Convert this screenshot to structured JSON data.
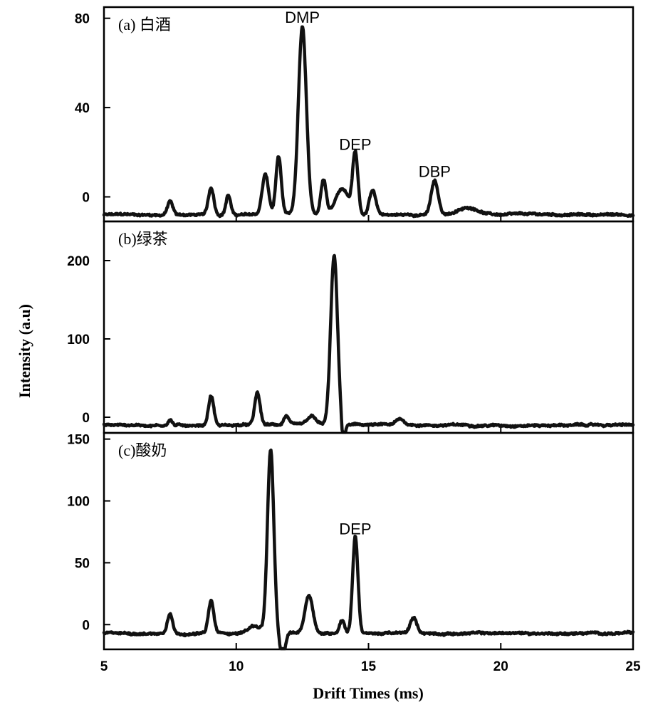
{
  "chart_data": {
    "type": "line",
    "xlabel": "Drift Times (ms)",
    "ylabel": "Intensity (a.u)",
    "xlim": [
      5,
      25
    ],
    "xticks": [
      5,
      10,
      15,
      20,
      25
    ],
    "grid": false,
    "panels": [
      {
        "label": "(a) 白酒",
        "ylim": [
          -11,
          85
        ],
        "yticks": [
          0,
          40,
          80
        ],
        "baseline": -8,
        "peaks": [
          {
            "x": 7.5,
            "h": 6,
            "w": 0.1
          },
          {
            "x": 9.05,
            "h": 12,
            "w": 0.1
          },
          {
            "x": 9.7,
            "h": 9,
            "w": 0.09
          },
          {
            "x": 11.1,
            "h": 18,
            "w": 0.12
          },
          {
            "x": 11.6,
            "h": 26,
            "w": 0.1
          },
          {
            "x": 12.5,
            "h": 84,
            "w": 0.15
          },
          {
            "x": 13.3,
            "h": 16,
            "w": 0.1
          },
          {
            "x": 14.0,
            "h": 12,
            "w": 0.25
          },
          {
            "x": 14.5,
            "h": 27,
            "w": 0.1
          },
          {
            "x": 15.15,
            "h": 11,
            "w": 0.12
          },
          {
            "x": 17.5,
            "h": 15,
            "w": 0.13
          },
          {
            "x": 18.8,
            "h": 3,
            "w": 0.4
          }
        ],
        "annotations": [
          {
            "text": "DMP",
            "x": 12.5,
            "y": 78
          },
          {
            "text": "DEP",
            "x": 14.5,
            "y": 21
          },
          {
            "text": "DBP",
            "x": 17.5,
            "y": 9
          }
        ]
      },
      {
        "label": "(b)绿茶",
        "ylim": [
          -20,
          250
        ],
        "yticks": [
          0,
          100,
          200
        ],
        "baseline": -10,
        "peaks": [
          {
            "x": 7.5,
            "h": 7,
            "w": 0.08
          },
          {
            "x": 9.05,
            "h": 38,
            "w": 0.1
          },
          {
            "x": 10.8,
            "h": 41,
            "w": 0.1
          },
          {
            "x": 11.9,
            "h": 12,
            "w": 0.1
          },
          {
            "x": 12.85,
            "h": 10,
            "w": 0.15
          },
          {
            "x": 13.7,
            "h": 215,
            "w": 0.13
          },
          {
            "x": 14.05,
            "h": -30,
            "w": 0.06
          },
          {
            "x": 16.2,
            "h": 7,
            "w": 0.15
          }
        ],
        "annotations": []
      },
      {
        "label": "(c)酸奶",
        "ylim": [
          -20,
          155
        ],
        "yticks": [
          0,
          50,
          100,
          150
        ],
        "baseline": -7,
        "peaks": [
          {
            "x": 7.5,
            "h": 17,
            "w": 0.1
          },
          {
            "x": 9.05,
            "h": 26,
            "w": 0.1
          },
          {
            "x": 10.7,
            "h": 6,
            "w": 0.25
          },
          {
            "x": 11.3,
            "h": 148,
            "w": 0.12
          },
          {
            "x": 11.75,
            "h": -20,
            "w": 0.1
          },
          {
            "x": 12.75,
            "h": 31,
            "w": 0.15
          },
          {
            "x": 14.0,
            "h": 11,
            "w": 0.1
          },
          {
            "x": 14.5,
            "h": 79,
            "w": 0.1
          },
          {
            "x": 16.7,
            "h": 12,
            "w": 0.12
          }
        ],
        "annotations": [
          {
            "text": "DEP",
            "x": 14.5,
            "y": 73
          }
        ]
      }
    ]
  }
}
